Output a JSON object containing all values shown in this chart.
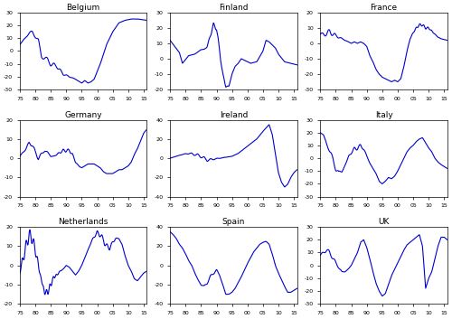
{
  "countries": [
    "Belgium",
    "Finland",
    "France",
    "Germany",
    "Ireland",
    "Italy",
    "Netherlands",
    "Spain",
    "UK"
  ],
  "line_color": "#0000CD",
  "line_width": 0.8,
  "background_color": "#ffffff",
  "x_tick_vals": [
    1975,
    1980,
    1985,
    1990,
    1995,
    2000,
    2005,
    2010,
    2015
  ],
  "x_tick_labels": [
    "75",
    "80",
    "85",
    "90",
    "95",
    "00",
    "05",
    "10",
    "15"
  ],
  "ylims": {
    "Belgium": [
      -30,
      30
    ],
    "Finland": [
      -20,
      30
    ],
    "France": [
      -30,
      20
    ],
    "Germany": [
      -20,
      20
    ],
    "Ireland": [
      -40,
      40
    ],
    "Italy": [
      -30,
      30
    ],
    "Netherlands": [
      -20,
      20
    ],
    "Spain": [
      -40,
      40
    ],
    "UK": [
      -30,
      30
    ]
  },
  "ytick_steps": {
    "Belgium": 10,
    "Finland": 10,
    "France": 10,
    "Germany": 10,
    "Ireland": 20,
    "Italy": 10,
    "Netherlands": 10,
    "Spain": 20,
    "UK": 10
  }
}
